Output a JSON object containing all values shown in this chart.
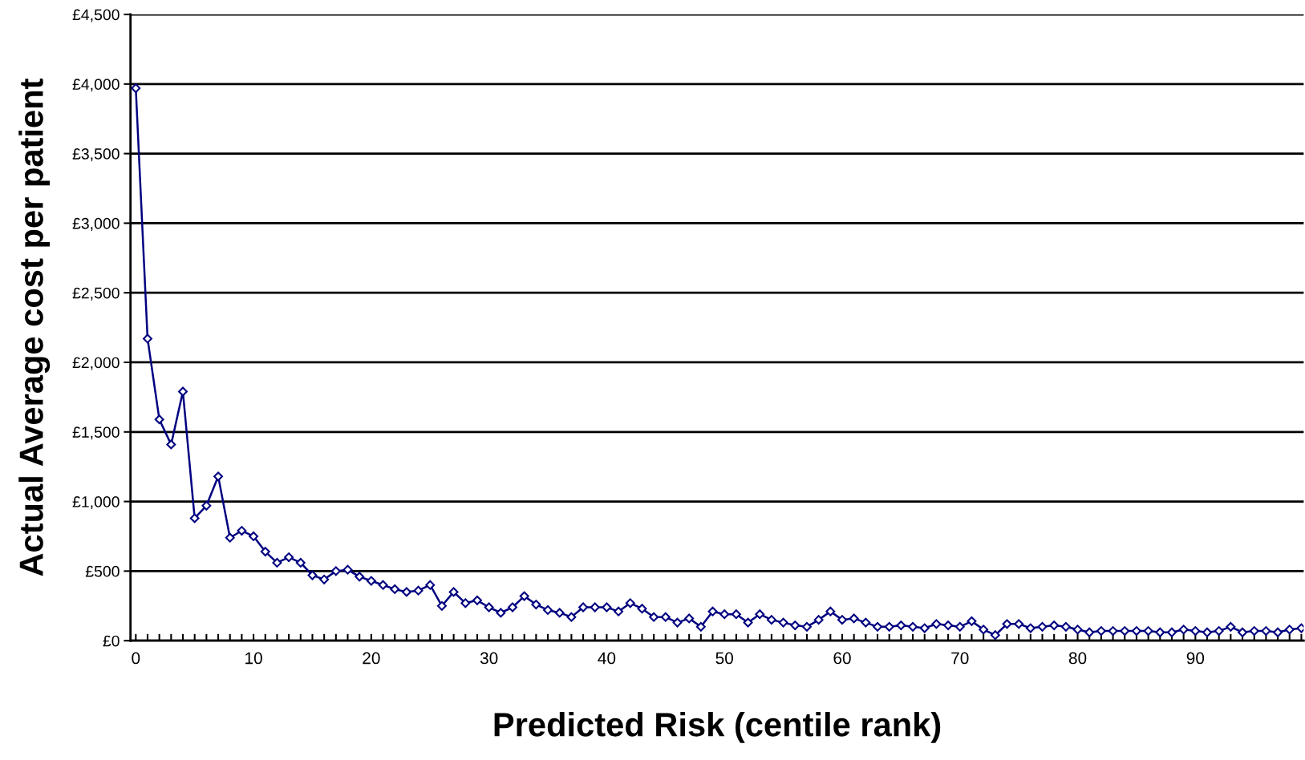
{
  "chart_data": {
    "type": "line",
    "xlabel": "Predicted Risk (centile rank)",
    "ylabel": "Actual Average cost per patient",
    "x": [
      0,
      1,
      2,
      3,
      4,
      5,
      6,
      7,
      8,
      9,
      10,
      11,
      12,
      13,
      14,
      15,
      16,
      17,
      18,
      19,
      20,
      21,
      22,
      23,
      24,
      25,
      26,
      27,
      28,
      29,
      30,
      31,
      32,
      33,
      34,
      35,
      36,
      37,
      38,
      39,
      40,
      41,
      42,
      43,
      44,
      45,
      46,
      47,
      48,
      49,
      50,
      51,
      52,
      53,
      54,
      55,
      56,
      57,
      58,
      59,
      60,
      61,
      62,
      63,
      64,
      65,
      66,
      67,
      68,
      69,
      70,
      71,
      72,
      73,
      74,
      75,
      76,
      77,
      78,
      79,
      80,
      81,
      82,
      83,
      84,
      85,
      86,
      87,
      88,
      89,
      90,
      91,
      92,
      93,
      94,
      95,
      96,
      97,
      98,
      99
    ],
    "series": [
      {
        "color": "#000080",
        "values": [
          3970,
          2170,
          1590,
          1410,
          1790,
          880,
          970,
          1180,
          740,
          790,
          750,
          640,
          560,
          600,
          560,
          470,
          440,
          500,
          510,
          460,
          430,
          400,
          370,
          350,
          360,
          400,
          250,
          350,
          270,
          290,
          240,
          200,
          240,
          320,
          260,
          220,
          200,
          170,
          240,
          240,
          240,
          210,
          270,
          230,
          170,
          170,
          130,
          160,
          100,
          210,
          190,
          190,
          130,
          190,
          150,
          130,
          110,
          100,
          150,
          210,
          150,
          160,
          130,
          100,
          100,
          110,
          100,
          90,
          120,
          110,
          100,
          140,
          80,
          40,
          120,
          120,
          90,
          100,
          110,
          100,
          80,
          60,
          70,
          70,
          70,
          70,
          70,
          60,
          60,
          80,
          70,
          60,
          70,
          100,
          60,
          70,
          70,
          60,
          80,
          90
        ]
      }
    ],
    "xlim": [
      -0.45,
      99.2
    ],
    "xticks": [
      0,
      10,
      20,
      30,
      40,
      50,
      60,
      70,
      80,
      90
    ],
    "ylim": [
      0,
      4500
    ],
    "yticks": [
      {
        "value": 0,
        "label": "£0"
      },
      {
        "value": 500,
        "label": "£500"
      },
      {
        "value": 1000,
        "label": "£1,000"
      },
      {
        "value": 1500,
        "label": "£1,500"
      },
      {
        "value": 2000,
        "label": "£2,000"
      },
      {
        "value": 2500,
        "label": "£2,500"
      },
      {
        "value": 3000,
        "label": "£3,000"
      },
      {
        "value": 3500,
        "label": "£3,500"
      },
      {
        "value": 4000,
        "label": "£4,000"
      },
      {
        "value": 4500,
        "label": "£4,500"
      }
    ],
    "grid": "y",
    "marker": "diamond",
    "line_style": "solid",
    "legend": false
  }
}
